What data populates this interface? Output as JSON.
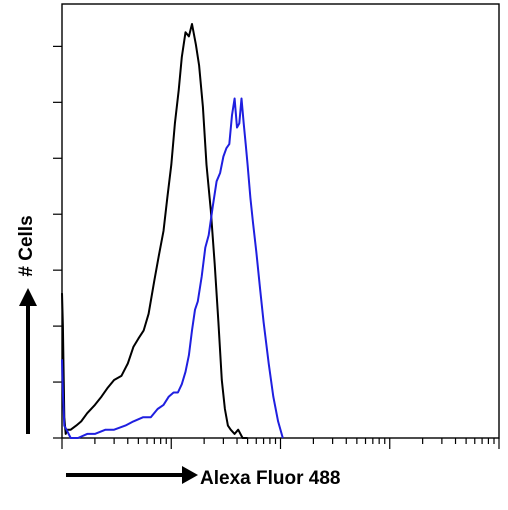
{
  "chart_data": {
    "type": "line",
    "title": "",
    "xlabel": "Alexa Fluor 488",
    "ylabel": "# Cells",
    "x_scale": "log",
    "xlim": [
      1,
      10000
    ],
    "ylim": [
      0,
      1
    ],
    "grid": false,
    "legend": "none",
    "axis_color": "#000000",
    "series": [
      {
        "color": "#000000",
        "x": [
          1.0,
          1.02,
          1.05,
          1.08,
          1.12,
          1.2,
          1.35,
          1.5,
          1.7,
          2.0,
          2.3,
          2.6,
          3.0,
          3.5,
          4.0,
          4.5,
          5.0,
          5.6,
          6.2,
          7.0,
          7.7,
          8.5,
          9.2,
          10.0,
          10.8,
          11.7,
          12.5,
          13.5,
          14.5,
          15.5,
          16.8,
          18.0,
          19.5,
          21.0,
          23.0,
          25.0,
          27.0,
          29.0,
          31.0,
          33.0,
          35.0,
          38.0,
          41.0,
          45.0,
          50.0
        ],
        "y": [
          0.35,
          0.27,
          0.05,
          0.01,
          0.02,
          0.02,
          0.03,
          0.04,
          0.06,
          0.08,
          0.1,
          0.12,
          0.14,
          0.15,
          0.18,
          0.22,
          0.24,
          0.26,
          0.3,
          0.38,
          0.44,
          0.5,
          0.58,
          0.66,
          0.76,
          0.84,
          0.92,
          0.98,
          0.97,
          1.0,
          0.95,
          0.9,
          0.8,
          0.66,
          0.55,
          0.42,
          0.28,
          0.14,
          0.07,
          0.03,
          0.02,
          0.01,
          0.02,
          0.0,
          0.0
        ]
      },
      {
        "color": "#1f1fe0",
        "x": [
          1.0,
          1.02,
          1.05,
          1.1,
          1.2,
          1.4,
          1.7,
          2.0,
          2.5,
          3.0,
          3.8,
          4.5,
          5.5,
          6.5,
          7.5,
          8.5,
          9.5,
          10.5,
          11.5,
          12.5,
          13.5,
          14.5,
          15.5,
          16.5,
          17.5,
          19.0,
          20.5,
          22.0,
          24.0,
          26.0,
          28.0,
          30.0,
          32.0,
          34.0,
          36.0,
          38.0,
          40.0,
          42.0,
          44.0,
          46.0,
          48.0,
          50.0,
          53.0,
          56.0,
          60.0,
          65.0,
          70.0,
          78.0,
          86.0,
          95.0,
          105.0
        ],
        "y": [
          0.19,
          0.11,
          0.03,
          0.02,
          0.0,
          0.0,
          0.01,
          0.01,
          0.02,
          0.02,
          0.03,
          0.04,
          0.05,
          0.05,
          0.07,
          0.08,
          0.1,
          0.11,
          0.11,
          0.13,
          0.16,
          0.2,
          0.26,
          0.31,
          0.33,
          0.39,
          0.46,
          0.49,
          0.56,
          0.62,
          0.64,
          0.68,
          0.7,
          0.71,
          0.78,
          0.82,
          0.75,
          0.76,
          0.82,
          0.76,
          0.71,
          0.66,
          0.58,
          0.52,
          0.45,
          0.36,
          0.28,
          0.18,
          0.1,
          0.04,
          0.0
        ]
      }
    ]
  }
}
